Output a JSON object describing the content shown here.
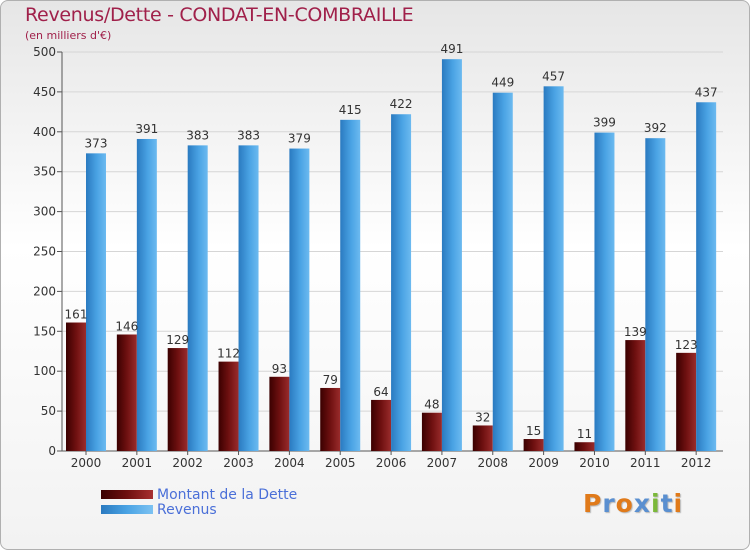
{
  "header": {
    "title": "Revenus/Dette - CONDAT-EN-COMBRAILLE",
    "subtitle": "(en milliers d'€)"
  },
  "colors": {
    "dette": "#6e1010",
    "revenus": "#4aa3e4",
    "title": "#a0204a"
  },
  "logo": {
    "text": "Proxiti"
  },
  "chart_data": {
    "type": "bar",
    "categories": [
      "2000",
      "2001",
      "2002",
      "2003",
      "2004",
      "2005",
      "2006",
      "2007",
      "2008",
      "2009",
      "2010",
      "2011",
      "2012"
    ],
    "series": [
      {
        "name": "Montant de la Dette",
        "values": [
          161,
          146,
          129,
          112,
          93,
          79,
          64,
          48,
          32,
          15,
          11,
          139,
          123
        ]
      },
      {
        "name": "Revenus",
        "values": [
          373,
          391,
          383,
          383,
          379,
          415,
          422,
          491,
          449,
          457,
          399,
          392,
          437
        ]
      }
    ],
    "ylim": [
      0,
      500
    ],
    "yticks": [
      0,
      50,
      100,
      150,
      200,
      250,
      300,
      350,
      400,
      450,
      500
    ],
    "grid": true,
    "legend": "bottom-left"
  }
}
